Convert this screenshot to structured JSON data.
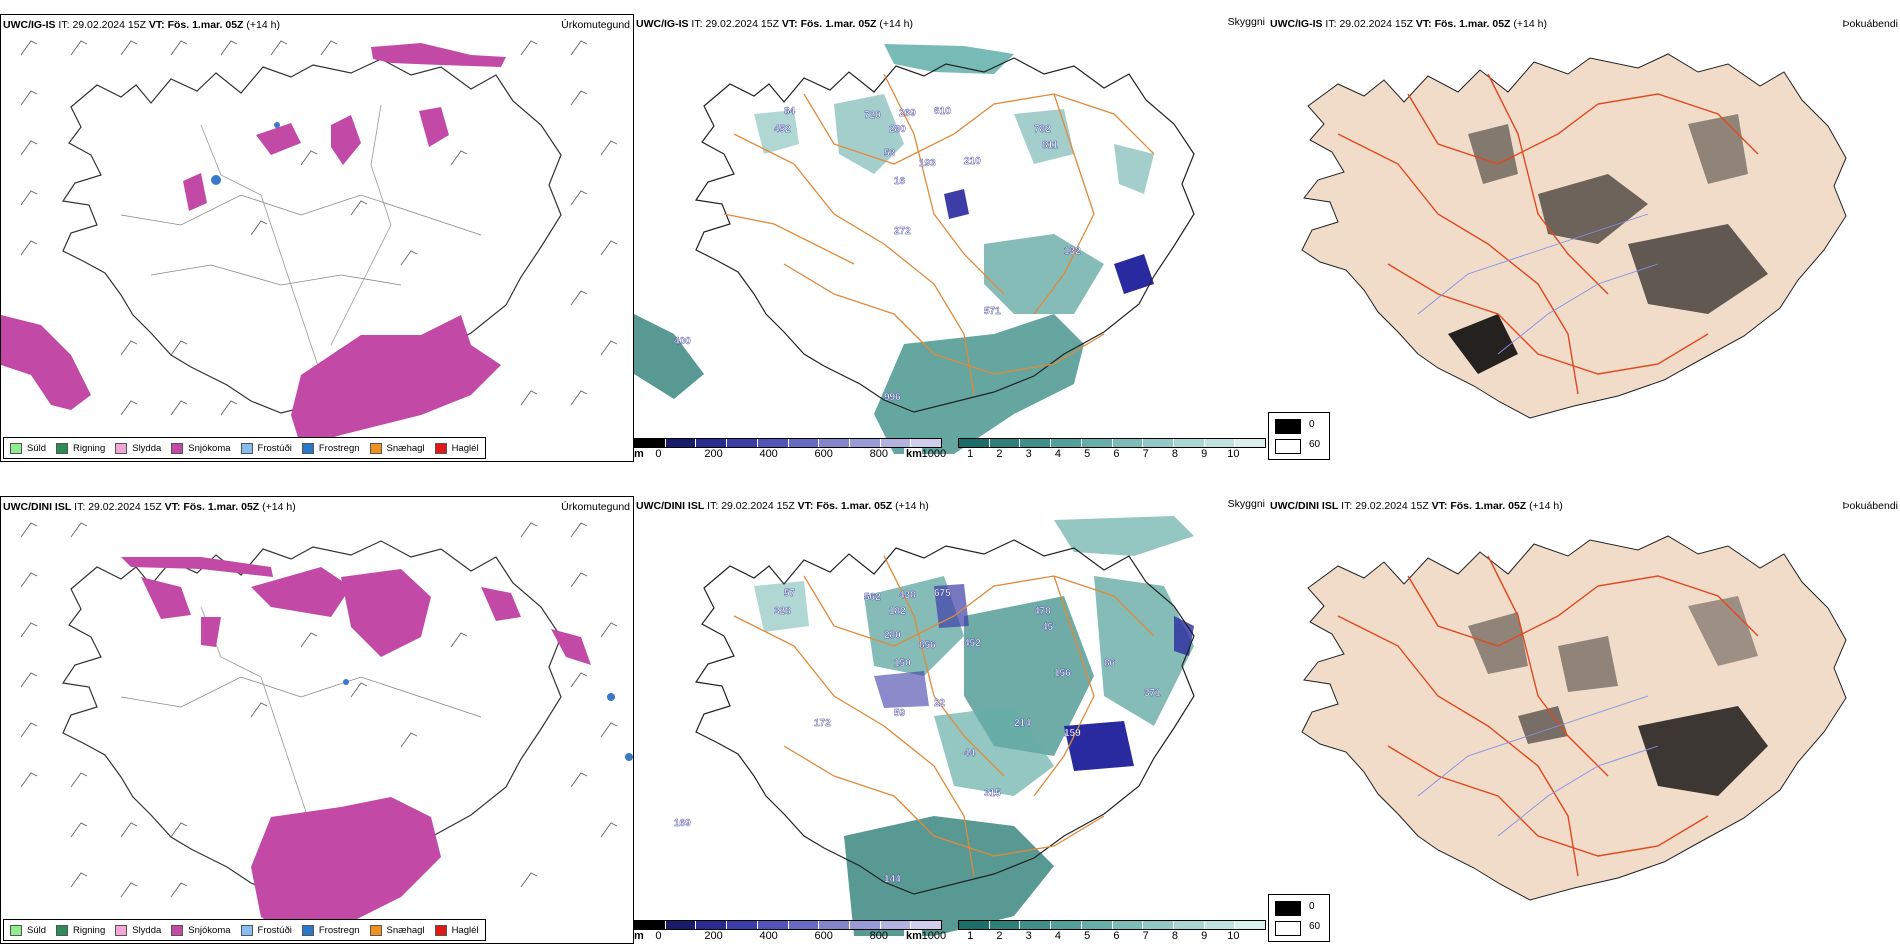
{
  "colors": {
    "precip_rain": "#2e8b57",
    "precip_snow": "#c24aa6",
    "freezing": "#3a78c9",
    "vis_dark": "#2a2aa0",
    "vis_teal": "#3f9c95",
    "road_orange": "#e08a3a",
    "cloud_tan": "#f1dcca",
    "road_red": "#e0481e",
    "river_blue": "#8090e8"
  },
  "legend_precip": [
    {
      "label": "Súld",
      "color": "#90ee90"
    },
    {
      "label": "Rigning",
      "color": "#2e8b57"
    },
    {
      "label": "Slydda",
      "color": "#f4a6d7"
    },
    {
      "label": "Snjókoma",
      "color": "#c24aa6"
    },
    {
      "label": "Frostúði",
      "color": "#87bdf0"
    },
    {
      "label": "Frostregn",
      "color": "#2a78c8"
    },
    {
      "label": "Snæhagl",
      "color": "#f0921e"
    },
    {
      "label": "Haglél",
      "color": "#e01818"
    }
  ],
  "visibility_scale": {
    "m_unit": "m",
    "m_ticks": [
      "0",
      "200",
      "400",
      "600",
      "800",
      "1000"
    ],
    "m_colors": [
      "#000000",
      "#1b1b6b",
      "#2a2a8f",
      "#3d3da8",
      "#5353b8",
      "#6a6ac2",
      "#8585cc",
      "#9a9ad6",
      "#b3b3e0",
      "#cfcfec"
    ],
    "km_unit": "km",
    "km_ticks": [
      "1",
      "2",
      "3",
      "4",
      "5",
      "6",
      "7",
      "8",
      "9",
      "10"
    ],
    "km_colors": [
      "#1c6f69",
      "#2e8079",
      "#3f908a",
      "#52a099",
      "#66aea8",
      "#7bbcb6",
      "#92c9c4",
      "#a9d6d1",
      "#c1e3df",
      "#daf0ed"
    ]
  },
  "cloud_legend": {
    "low": "0",
    "high": "60"
  },
  "rows": [
    {
      "model": "UWC/IG-IS",
      "it_label": "IT:",
      "it_value": "29.02.2024 15Z",
      "vt_label": "VT:",
      "vt_value": "Fös. 1.mar. 05Z",
      "lead": "(+14 h)",
      "panel1_title": "Úrkomutegund",
      "panel2_title": "Skyggni",
      "panel3_title": "Þokuábendi",
      "vis_labels": [
        "84",
        "452",
        "720",
        "269",
        "280",
        "610",
        "782",
        "811",
        "210",
        "53",
        "193",
        "16",
        "272",
        "132",
        "571",
        "400",
        "996"
      ]
    },
    {
      "model": "UWC/DINI ISL",
      "it_label": "IT:",
      "it_value": "29.02.2024 15Z",
      "vt_label": "VT:",
      "vt_value": "Fös. 1.mar. 05Z",
      "lead": "(+14 h)",
      "panel1_title": "Úrkomutegund",
      "panel2_title": "Skyggni",
      "panel3_title": "Þokuábendi",
      "vis_labels": [
        "57",
        "328",
        "562",
        "438",
        "182",
        "675",
        "478",
        "45",
        "452",
        "280",
        "856",
        "150",
        "59",
        "159",
        "315",
        "169",
        "144",
        "22",
        "214",
        "172",
        "156",
        "86",
        "371",
        "44"
      ]
    }
  ]
}
